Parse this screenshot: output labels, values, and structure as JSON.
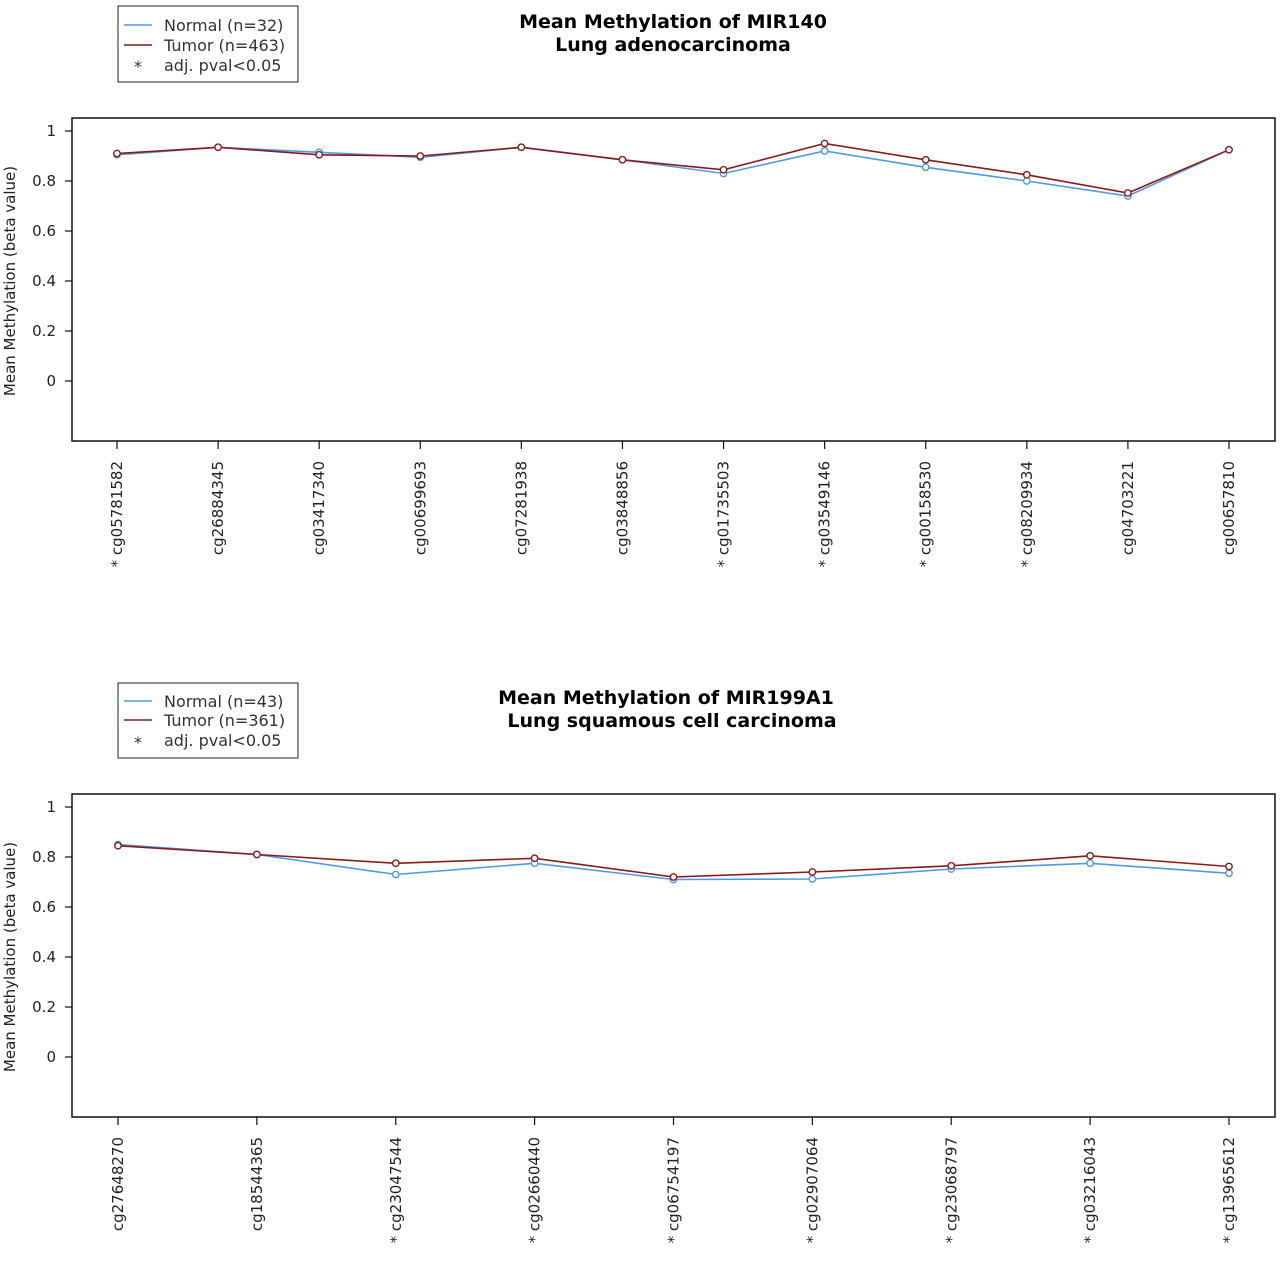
{
  "colors": {
    "normal": "#4d9be6",
    "tumor": "#8b1a1a"
  },
  "chart_data": [
    {
      "type": "line",
      "title": "Mean Methylation of MIR140",
      "subtitle": "Lung adenocarcinoma",
      "ylabel": "Mean Methylation (beta value)",
      "xlabel": "",
      "ylim": [
        -0.25,
        1.05
      ],
      "yticks": [
        "1",
        "0.8",
        "0.6",
        "0.4",
        "0.2",
        "0"
      ],
      "legend_position": "top-left",
      "legend": [
        {
          "label": "Normal (n=32)",
          "kind": "line",
          "color": "#4d9be6"
        },
        {
          "label": "Tumor (n=463)",
          "kind": "line",
          "color": "#8b1a1a"
        },
        {
          "label": "adj. pval<0.05",
          "kind": "star",
          "symbol": "*"
        }
      ],
      "categories": [
        "cg05781582",
        "cg26884345",
        "cg03417340",
        "cg00699693",
        "cg07281938",
        "cg03848856",
        "cg01735503",
        "cg03549146",
        "cg00158530",
        "cg08209934",
        "cg04703221",
        "cg00657810"
      ],
      "significant": [
        true,
        false,
        false,
        false,
        false,
        false,
        true,
        true,
        true,
        true,
        false,
        false
      ],
      "series": [
        {
          "name": "Normal (n=32)",
          "values": [
            0.905,
            0.935,
            0.915,
            0.895,
            0.935,
            0.885,
            0.83,
            0.92,
            0.855,
            0.8,
            0.74,
            0.925
          ]
        },
        {
          "name": "Tumor (n=463)",
          "values": [
            0.91,
            0.935,
            0.905,
            0.9,
            0.935,
            0.885,
            0.845,
            0.95,
            0.885,
            0.825,
            0.752,
            0.925
          ]
        }
      ]
    },
    {
      "type": "line",
      "title": "Mean Methylation of MIR199A1",
      "subtitle": "Lung squamous cell carcinoma",
      "ylabel": "Mean Methylation (beta value)",
      "xlabel": "",
      "ylim": [
        -0.25,
        1.05
      ],
      "yticks": [
        "1",
        "0.8",
        "0.6",
        "0.4",
        "0.2",
        "0"
      ],
      "legend_position": "top-left",
      "legend": [
        {
          "label": "Normal (n=43)",
          "kind": "line",
          "color": "#4d9be6"
        },
        {
          "label": "Tumor (n=361)",
          "kind": "line",
          "color": "#8b1a1a"
        },
        {
          "label": "adj. pval<0.05",
          "kind": "star",
          "symbol": "*"
        }
      ],
      "categories": [
        "cg27648270",
        "cg18544365",
        "cg23047544",
        "cg02660440",
        "cg06754197",
        "cg02907064",
        "cg23068797",
        "cg03216043",
        "cg13965612"
      ],
      "significant": [
        false,
        false,
        true,
        true,
        true,
        true,
        true,
        true,
        true
      ],
      "series": [
        {
          "name": "Normal (n=43)",
          "values": [
            0.85,
            0.81,
            0.73,
            0.775,
            0.71,
            0.712,
            0.752,
            0.775,
            0.735
          ]
        },
        {
          "name": "Tumor (n=361)",
          "values": [
            0.845,
            0.81,
            0.775,
            0.795,
            0.72,
            0.74,
            0.765,
            0.805,
            0.762
          ]
        }
      ]
    }
  ]
}
